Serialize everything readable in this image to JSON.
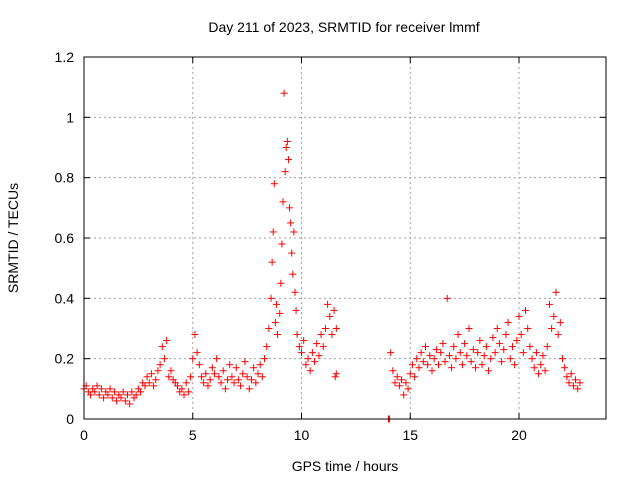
{
  "chart_data": {
    "type": "scatter",
    "title": "Day 211 of 2023, SRMTID for receiver lmmf",
    "xlabel": "GPS time / hours",
    "ylabel": "SRMTID / TECUs",
    "xlim": [
      0,
      24
    ],
    "ylim": [
      0,
      1.2
    ],
    "xticks": [
      0,
      5,
      10,
      15,
      20
    ],
    "xtick_labels": [
      "0",
      "5",
      "10",
      "15",
      "20"
    ],
    "yticks": [
      0,
      0.2,
      0.4,
      0.6,
      0.8,
      1.0,
      1.2
    ],
    "ytick_labels": [
      "0",
      "0.2",
      "0.4",
      "0.6",
      "0.8",
      "1",
      "1.2"
    ],
    "grid": true,
    "marker": "+",
    "color": "#ff0000",
    "series": [
      {
        "name": "SRMTID",
        "points": [
          [
            0.0,
            0.1
          ],
          [
            0.1,
            0.11
          ],
          [
            0.2,
            0.09
          ],
          [
            0.3,
            0.08
          ],
          [
            0.4,
            0.1
          ],
          [
            0.5,
            0.09
          ],
          [
            0.6,
            0.11
          ],
          [
            0.7,
            0.08
          ],
          [
            0.8,
            0.1
          ],
          [
            0.9,
            0.07
          ],
          [
            1.0,
            0.09
          ],
          [
            1.1,
            0.08
          ],
          [
            1.2,
            0.1
          ],
          [
            1.3,
            0.07
          ],
          [
            1.4,
            0.09
          ],
          [
            1.5,
            0.06
          ],
          [
            1.6,
            0.08
          ],
          [
            1.7,
            0.07
          ],
          [
            1.8,
            0.09
          ],
          [
            1.9,
            0.06
          ],
          [
            2.0,
            0.08
          ],
          [
            2.1,
            0.05
          ],
          [
            2.2,
            0.09
          ],
          [
            2.3,
            0.07
          ],
          [
            2.4,
            0.08
          ],
          [
            2.5,
            0.1
          ],
          [
            2.6,
            0.09
          ],
          [
            2.7,
            0.12
          ],
          [
            2.8,
            0.11
          ],
          [
            2.9,
            0.14
          ],
          [
            3.0,
            0.12
          ],
          [
            3.1,
            0.15
          ],
          [
            3.2,
            0.11
          ],
          [
            3.3,
            0.13
          ],
          [
            3.4,
            0.16
          ],
          [
            3.5,
            0.18
          ],
          [
            3.6,
            0.24
          ],
          [
            3.7,
            0.2
          ],
          [
            3.8,
            0.26
          ],
          [
            3.9,
            0.14
          ],
          [
            4.0,
            0.16
          ],
          [
            4.1,
            0.13
          ],
          [
            4.2,
            0.12
          ],
          [
            4.3,
            0.11
          ],
          [
            4.4,
            0.09
          ],
          [
            4.5,
            0.1
          ],
          [
            4.6,
            0.08
          ],
          [
            4.7,
            0.12
          ],
          [
            4.8,
            0.09
          ],
          [
            4.9,
            0.14
          ],
          [
            5.0,
            0.2
          ],
          [
            5.1,
            0.28
          ],
          [
            5.2,
            0.22
          ],
          [
            5.3,
            0.18
          ],
          [
            5.4,
            0.14
          ],
          [
            5.5,
            0.12
          ],
          [
            5.6,
            0.15
          ],
          [
            5.7,
            0.11
          ],
          [
            5.8,
            0.13
          ],
          [
            5.9,
            0.17
          ],
          [
            6.0,
            0.15
          ],
          [
            6.1,
            0.2
          ],
          [
            6.2,
            0.14
          ],
          [
            6.3,
            0.12
          ],
          [
            6.4,
            0.16
          ],
          [
            6.5,
            0.1
          ],
          [
            6.6,
            0.13
          ],
          [
            6.7,
            0.18
          ],
          [
            6.8,
            0.14
          ],
          [
            6.9,
            0.12
          ],
          [
            7.0,
            0.17
          ],
          [
            7.1,
            0.13
          ],
          [
            7.2,
            0.11
          ],
          [
            7.3,
            0.15
          ],
          [
            7.4,
            0.19
          ],
          [
            7.5,
            0.14
          ],
          [
            7.6,
            0.1
          ],
          [
            7.7,
            0.13
          ],
          [
            7.8,
            0.17
          ],
          [
            7.9,
            0.12
          ],
          [
            8.0,
            0.15
          ],
          [
            8.1,
            0.18
          ],
          [
            8.2,
            0.14
          ],
          [
            8.3,
            0.2
          ],
          [
            8.4,
            0.24
          ],
          [
            8.5,
            0.3
          ],
          [
            8.6,
            0.4
          ],
          [
            8.65,
            0.52
          ],
          [
            8.7,
            0.62
          ],
          [
            8.75,
            0.78
          ],
          [
            8.8,
            0.32
          ],
          [
            8.85,
            0.38
          ],
          [
            8.9,
            0.28
          ],
          [
            9.0,
            0.35
          ],
          [
            9.05,
            0.45
          ],
          [
            9.1,
            0.58
          ],
          [
            9.15,
            0.72
          ],
          [
            9.2,
            1.08
          ],
          [
            9.25,
            0.82
          ],
          [
            9.3,
            0.9
          ],
          [
            9.35,
            0.92
          ],
          [
            9.4,
            0.86
          ],
          [
            9.45,
            0.7
          ],
          [
            9.5,
            0.65
          ],
          [
            9.55,
            0.55
          ],
          [
            9.6,
            0.48
          ],
          [
            9.65,
            0.62
          ],
          [
            9.7,
            0.42
          ],
          [
            9.75,
            0.36
          ],
          [
            9.8,
            0.28
          ],
          [
            9.9,
            0.24
          ],
          [
            10.0,
            0.22
          ],
          [
            10.1,
            0.26
          ],
          [
            10.2,
            0.18
          ],
          [
            10.3,
            0.2
          ],
          [
            10.4,
            0.16
          ],
          [
            10.5,
            0.22
          ],
          [
            10.6,
            0.19
          ],
          [
            10.7,
            0.25
          ],
          [
            10.8,
            0.21
          ],
          [
            10.9,
            0.28
          ],
          [
            11.0,
            0.24
          ],
          [
            11.1,
            0.3
          ],
          [
            11.2,
            0.38
          ],
          [
            11.3,
            0.34
          ],
          [
            11.4,
            0.28
          ],
          [
            11.5,
            0.36
          ],
          [
            11.6,
            0.3
          ],
          [
            11.6,
            0.15
          ],
          [
            11.55,
            0.14
          ],
          [
            14.0,
            0.0
          ],
          [
            14.05,
            0.0
          ],
          [
            14.1,
            0.22
          ],
          [
            14.2,
            0.16
          ],
          [
            14.3,
            0.12
          ],
          [
            14.4,
            0.14
          ],
          [
            14.5,
            0.11
          ],
          [
            14.6,
            0.13
          ],
          [
            14.7,
            0.08
          ],
          [
            14.8,
            0.12
          ],
          [
            14.9,
            0.1
          ],
          [
            15.0,
            0.15
          ],
          [
            15.1,
            0.18
          ],
          [
            15.2,
            0.14
          ],
          [
            15.3,
            0.2
          ],
          [
            15.4,
            0.17
          ],
          [
            15.5,
            0.22
          ],
          [
            15.6,
            0.19
          ],
          [
            15.7,
            0.24
          ],
          [
            15.8,
            0.18
          ],
          [
            15.9,
            0.21
          ],
          [
            16.0,
            0.16
          ],
          [
            16.1,
            0.2
          ],
          [
            16.2,
            0.23
          ],
          [
            16.3,
            0.18
          ],
          [
            16.4,
            0.22
          ],
          [
            16.5,
            0.25
          ],
          [
            16.6,
            0.19
          ],
          [
            16.7,
            0.4
          ],
          [
            16.8,
            0.21
          ],
          [
            16.9,
            0.17
          ],
          [
            17.0,
            0.24
          ],
          [
            17.1,
            0.2
          ],
          [
            17.2,
            0.28
          ],
          [
            17.3,
            0.22
          ],
          [
            17.4,
            0.18
          ],
          [
            17.5,
            0.25
          ],
          [
            17.6,
            0.21
          ],
          [
            17.7,
            0.3
          ],
          [
            17.8,
            0.19
          ],
          [
            17.9,
            0.23
          ],
          [
            18.0,
            0.17
          ],
          [
            18.1,
            0.22
          ],
          [
            18.2,
            0.26
          ],
          [
            18.3,
            0.18
          ],
          [
            18.4,
            0.21
          ],
          [
            18.5,
            0.24
          ],
          [
            18.6,
            0.16
          ],
          [
            18.7,
            0.2
          ],
          [
            18.8,
            0.27
          ],
          [
            18.9,
            0.22
          ],
          [
            19.0,
            0.3
          ],
          [
            19.1,
            0.25
          ],
          [
            19.2,
            0.19
          ],
          [
            19.3,
            0.23
          ],
          [
            19.4,
            0.28
          ],
          [
            19.5,
            0.32
          ],
          [
            19.6,
            0.2
          ],
          [
            19.7,
            0.24
          ],
          [
            19.8,
            0.18
          ],
          [
            19.9,
            0.26
          ],
          [
            20.0,
            0.34
          ],
          [
            20.1,
            0.28
          ],
          [
            20.2,
            0.22
          ],
          [
            20.3,
            0.36
          ],
          [
            20.4,
            0.3
          ],
          [
            20.5,
            0.24
          ],
          [
            20.6,
            0.2
          ],
          [
            20.7,
            0.17
          ],
          [
            20.8,
            0.22
          ],
          [
            20.9,
            0.15
          ],
          [
            21.0,
            0.18
          ],
          [
            21.1,
            0.21
          ],
          [
            21.2,
            0.16
          ],
          [
            21.3,
            0.24
          ],
          [
            21.4,
            0.38
          ],
          [
            21.5,
            0.3
          ],
          [
            21.6,
            0.34
          ],
          [
            21.7,
            0.42
          ],
          [
            21.8,
            0.28
          ],
          [
            21.9,
            0.32
          ],
          [
            22.0,
            0.2
          ],
          [
            22.1,
            0.17
          ],
          [
            22.2,
            0.14
          ],
          [
            22.3,
            0.12
          ],
          [
            22.4,
            0.15
          ],
          [
            22.5,
            0.11
          ],
          [
            22.6,
            0.13
          ],
          [
            22.7,
            0.1
          ],
          [
            22.8,
            0.12
          ]
        ]
      }
    ]
  }
}
